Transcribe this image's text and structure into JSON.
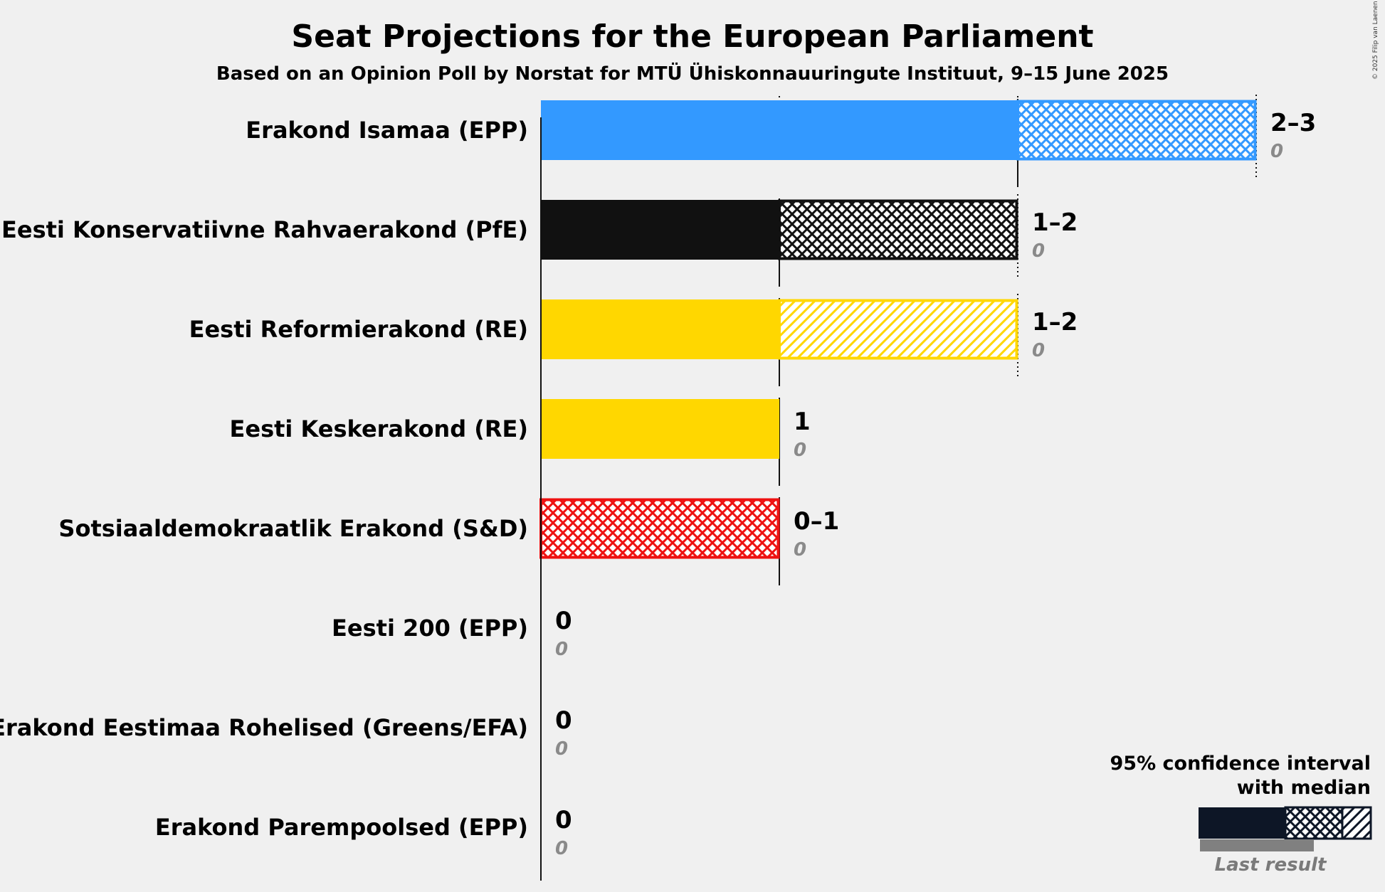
{
  "header": {
    "title": "Seat Projections for the European Parliament",
    "subtitle": "Based on an Opinion Poll by Norstat for MTÜ Ühiskonnauuringute Instituut, 9–15 June 2025",
    "copyright": "© 2025 Filip van Laenen"
  },
  "legend": {
    "line1": "95% confidence interval",
    "line2": "with median",
    "last_result": "Last result"
  },
  "chart_data": {
    "type": "bar",
    "orientation": "horizontal",
    "xlim": [
      0,
      3
    ],
    "categories": [
      "Erakond Isamaa (EPP)",
      "Eesti Konservatiivne Rahvaerakond (PfE)",
      "Eesti Reformierakond (RE)",
      "Eesti Keskerakond (RE)",
      "Sotsiaaldemokraatlik Erakond (S&D)",
      "Eesti 200 (EPP)",
      "Erakond Eestimaa Rohelised (Greens/EFA)",
      "Erakond Parempoolsed (EPP)"
    ],
    "ci_low": [
      2,
      1,
      1,
      1,
      0,
      0,
      0,
      0
    ],
    "median": [
      2,
      1,
      1,
      1,
      1,
      0,
      0,
      0
    ],
    "ci_high": [
      3,
      2,
      2,
      1,
      1,
      0,
      0,
      0
    ],
    "last_result": [
      0,
      0,
      0,
      0,
      0,
      0,
      0,
      0
    ],
    "range_labels": [
      "2–3",
      "1–2",
      "1–2",
      "1",
      "0–1",
      "0",
      "0",
      "0"
    ],
    "last_labels": [
      "0",
      "0",
      "0",
      "0",
      "0",
      "0",
      "0",
      "0"
    ],
    "colors": [
      "#3399ff",
      "#111111",
      "#ffd700",
      "#ffd700",
      "#ee1111",
      "#3399ff",
      "#3399ff",
      "#3399ff"
    ],
    "patterns": [
      "cross",
      "cross",
      "diagonal",
      "cross",
      "cross",
      "cross",
      "cross",
      "cross"
    ],
    "gridlines": [
      1,
      2,
      3
    ]
  }
}
